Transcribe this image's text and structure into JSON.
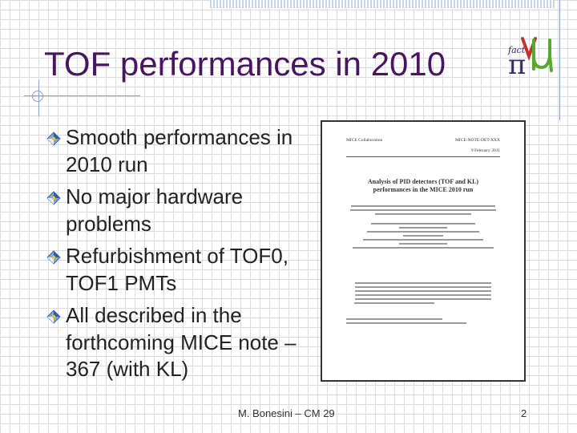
{
  "slide": {
    "title": "TOF performances in 2010",
    "bullets": [
      "Smooth performances in 2010 run",
      "No major hardware problems",
      "Refurbishment of TOF0, TOF1 PMTs",
      "All described in the forthcoming MICE note – 367 (with KL)"
    ]
  },
  "document_thumbnail": {
    "collaboration": "MICE Collaboration",
    "doc_number": "MICE-NOTE-DET-XXX",
    "date": "9 February 2011",
    "title_line1": "Analysis of PID detectors (TOF and KL)",
    "title_line2": "performances in the MICE 2010 run"
  },
  "footer": {
    "text": "M. Bonesini – CM 29",
    "page_number": "2"
  },
  "colors": {
    "title": "#4a1560",
    "bullet_text": "#222222",
    "grid_lines": "#dcdcdc",
    "accent_rules": "#8aa0c8"
  },
  "icons": {
    "bullet": "diamond-bullet-icon",
    "logo": "pi-nu-mu-logo"
  }
}
